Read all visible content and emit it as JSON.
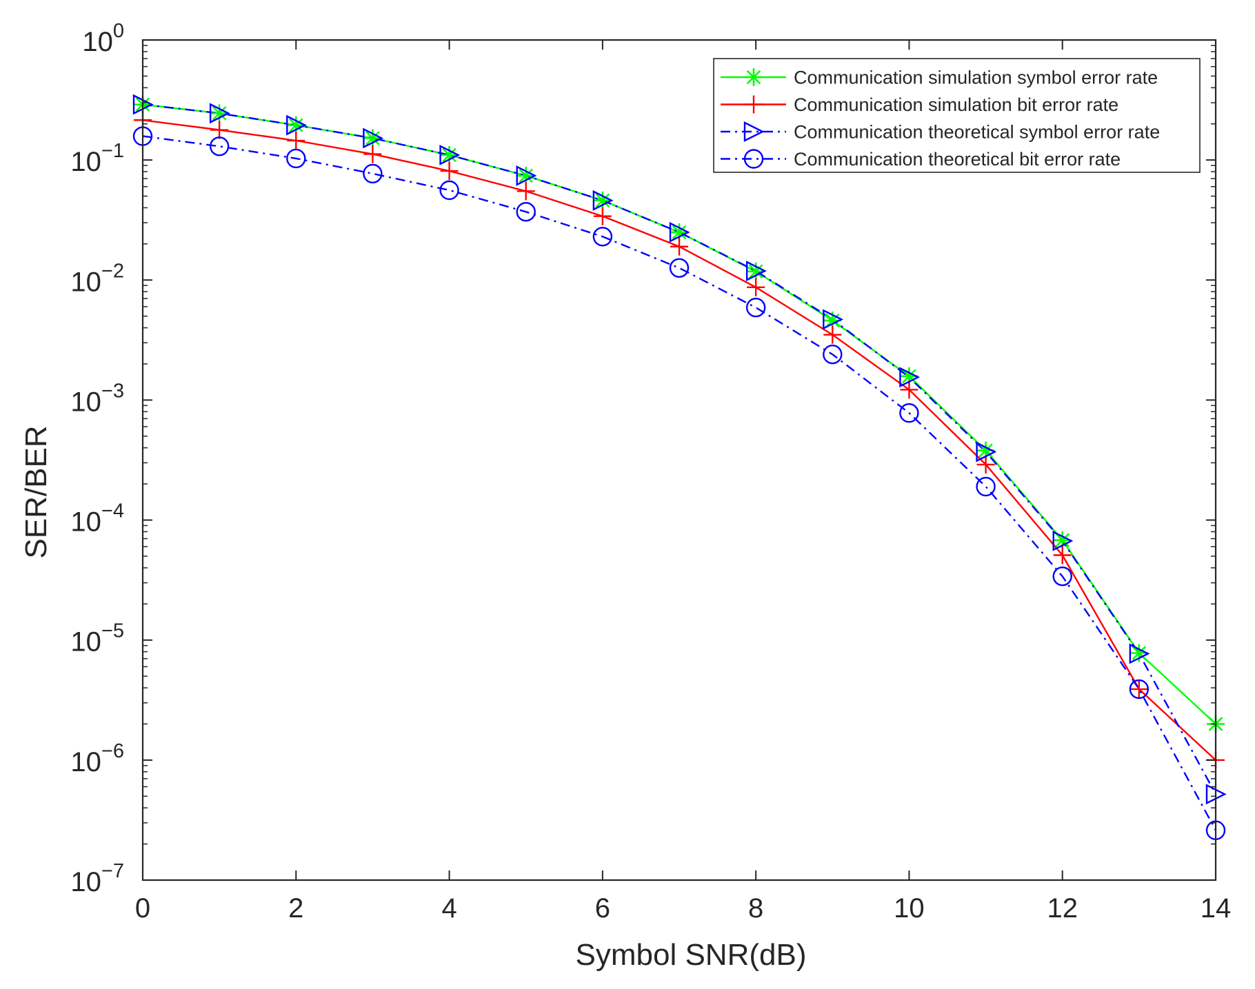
{
  "chart_data": {
    "type": "line",
    "title": "",
    "xlabel": "Symbol SNR(dB)",
    "ylabel": "SER/BER",
    "xlim": [
      0,
      14
    ],
    "ylim": [
      1e-07,
      1
    ],
    "yscale": "log",
    "grid": false,
    "legend_position": "top-right",
    "x": [
      0,
      1,
      2,
      3,
      4,
      5,
      6,
      7,
      8,
      9,
      10,
      11,
      12,
      13,
      14
    ],
    "x_ticks": [
      0,
      2,
      4,
      6,
      8,
      10,
      12,
      14
    ],
    "x_tick_labels": [
      "0",
      "2",
      "4",
      "6",
      "8",
      "10",
      "12",
      "14"
    ],
    "y_tick_labels": [
      {
        "base": "10",
        "exp": "0"
      },
      {
        "base": "10",
        "exp": "−1"
      },
      {
        "base": "10",
        "exp": "−2"
      },
      {
        "base": "10",
        "exp": "−3"
      },
      {
        "base": "10",
        "exp": "−4"
      },
      {
        "base": "10",
        "exp": "−5"
      },
      {
        "base": "10",
        "exp": "−6"
      },
      {
        "base": "10",
        "exp": "−7"
      }
    ],
    "series": [
      {
        "name": "Communication simulation symbol error rate",
        "color": "#00ff00",
        "line": "solid",
        "marker": "asterisk",
        "values": [
          0.29,
          0.245,
          0.195,
          0.152,
          0.11,
          0.074,
          0.046,
          0.025,
          0.0118,
          0.0046,
          0.00158,
          0.00038,
          6.8e-05,
          7.8e-06,
          2e-06
        ]
      },
      {
        "name": "Communication simulation bit error rate",
        "color": "#ff0000",
        "line": "solid",
        "marker": "plus",
        "values": [
          0.215,
          0.178,
          0.145,
          0.112,
          0.081,
          0.055,
          0.034,
          0.019,
          0.0087,
          0.0035,
          0.00122,
          0.00029,
          5.1e-05,
          3.9e-06,
          1e-06
        ]
      },
      {
        "name": "Communication theoretical symbol error rate",
        "color": "#0000ff",
        "line": "dashdot",
        "marker": "triangle-right",
        "values": [
          0.29,
          0.245,
          0.195,
          0.152,
          0.11,
          0.074,
          0.046,
          0.025,
          0.0119,
          0.0047,
          0.00155,
          0.00037,
          6.7e-05,
          7.7e-06,
          5.2e-07
        ]
      },
      {
        "name": "Communication theoretical bit error rate",
        "color": "#0000ff",
        "line": "dashdot",
        "marker": "circle",
        "values": [
          0.158,
          0.13,
          0.103,
          0.077,
          0.056,
          0.037,
          0.023,
          0.0126,
          0.0059,
          0.0024,
          0.00078,
          0.00019,
          3.4e-05,
          3.9e-06,
          2.6e-07
        ]
      }
    ]
  }
}
